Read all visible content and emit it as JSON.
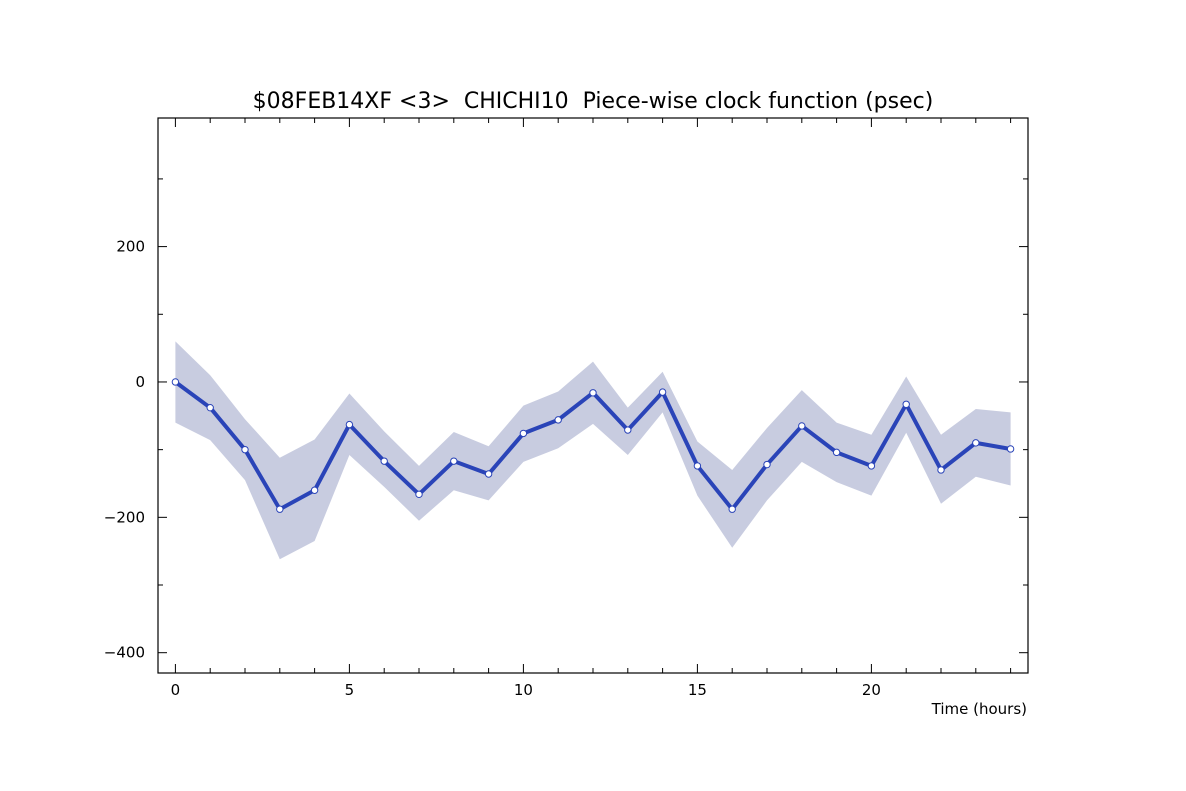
{
  "chart_data": {
    "type": "line",
    "title": "$08FEB14XF <3>  CHICHI10  Piece-wise clock function (psec)",
    "xlabel": "Time (hours)",
    "ylabel": "",
    "xlim": [
      -0.5,
      24.5
    ],
    "ylim": [
      -430,
      390
    ],
    "x_ticks_major": [
      0,
      5,
      10,
      15,
      20
    ],
    "x_tick_labels": [
      "0",
      "5",
      "10",
      "15",
      "20"
    ],
    "y_ticks_major": [
      -400,
      -200,
      0,
      200
    ],
    "y_tick_labels": [
      "−400",
      "−200",
      "0",
      "200"
    ],
    "y_ticks_minor": [
      -300,
      -100,
      100,
      300
    ],
    "grid": false,
    "colors": {
      "line": "#2a44b8",
      "band": "#c8cce0",
      "marker_fill": "#ffffff",
      "axis": "#000000"
    },
    "series": [
      {
        "x": [
          0,
          1,
          2,
          3,
          4,
          5,
          6,
          7,
          8,
          9,
          10,
          11,
          12,
          13,
          14,
          15,
          16,
          17,
          18,
          19,
          20,
          21,
          22,
          23,
          24
        ],
        "values": [
          0,
          -38,
          -100,
          -188,
          -160,
          -63,
          -117,
          -166,
          -117,
          -136,
          -76,
          -56,
          -16,
          -71,
          -15,
          -124,
          -188,
          -122,
          -65,
          -104,
          -124,
          -33,
          -130,
          -90,
          -99
        ],
        "upper": [
          60,
          10,
          -55,
          -112,
          -85,
          -17,
          -73,
          -124,
          -74,
          -95,
          -35,
          -14,
          30,
          -38,
          15,
          -88,
          -130,
          -68,
          -12,
          -60,
          -78,
          8,
          -78,
          -40,
          -45
        ],
        "lower": [
          -60,
          -86,
          -145,
          -262,
          -235,
          -108,
          -155,
          -205,
          -160,
          -175,
          -118,
          -98,
          -62,
          -108,
          -45,
          -168,
          -245,
          -175,
          -118,
          -148,
          -168,
          -75,
          -180,
          -140,
          -153
        ]
      }
    ]
  }
}
